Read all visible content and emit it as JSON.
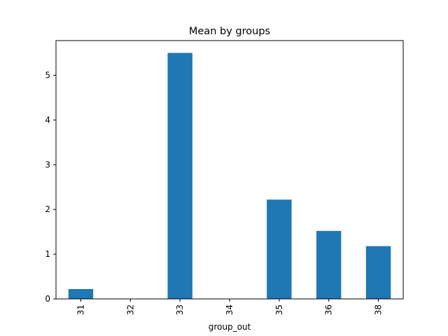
{
  "chart_data": {
    "type": "bar",
    "title": "Mean by groups",
    "xlabel": "group_out",
    "ylabel": "",
    "categories": [
      "31",
      "32",
      "33",
      "34",
      "35",
      "36",
      "38"
    ],
    "values": [
      0.22,
      0.0,
      5.5,
      0.0,
      2.22,
      1.52,
      1.18
    ],
    "ylim": [
      0,
      5.775
    ],
    "yticks": [
      0,
      1,
      2,
      3,
      4,
      5
    ],
    "bar_color": "#1f77b4",
    "grid": false,
    "legend": "none"
  }
}
